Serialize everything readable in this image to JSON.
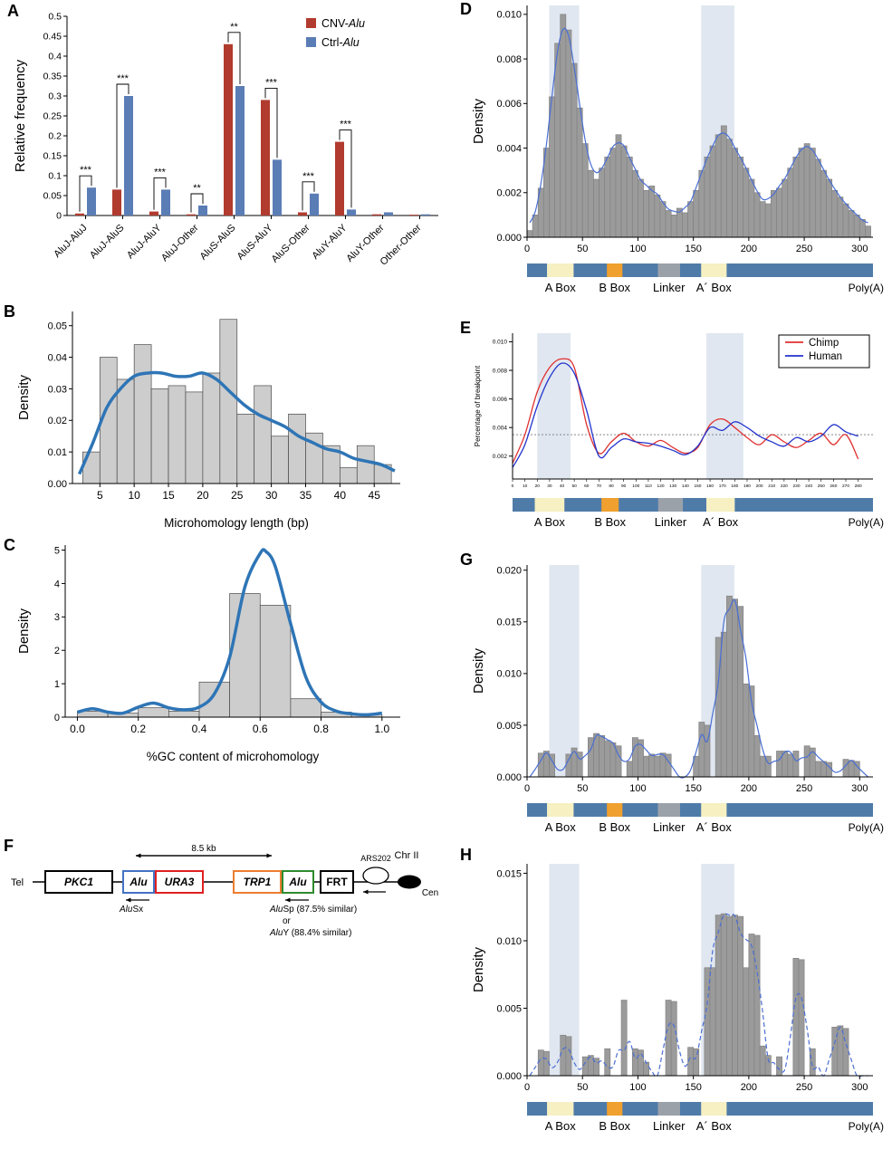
{
  "panel_labels": {
    "A": "A",
    "B": "B",
    "C": "C",
    "D": "D",
    "E": "E",
    "F": "F",
    "G": "G",
    "H": "H"
  },
  "gene_bar": {
    "base_color": "#4f7ba9",
    "right_label": "Poly(A)",
    "segments": [
      {
        "name": "A Box",
        "color": "#f6f0c2",
        "from": 18,
        "to": 42
      },
      {
        "name": "B Box",
        "color": "#efa02e",
        "from": 72,
        "to": 86
      },
      {
        "name": "Linker",
        "color": "#9aa1a9",
        "from": 118,
        "to": 138
      },
      {
        "name": "A´ Box",
        "color": "#f6f0c2",
        "from": 157,
        "to": 180
      }
    ]
  },
  "construct_diagram": {
    "tel": "Tel",
    "chr": "Chr II",
    "cen": "Cen",
    "ars": "ARS202",
    "scale": "8.5 kb",
    "boxes": [
      {
        "name": "PKC1",
        "color": "#000000",
        "italic": true
      },
      {
        "name": "Alu",
        "color": "#4472c4",
        "italic": true
      },
      {
        "name": "URA3",
        "color": "#e02020",
        "italic": true
      },
      {
        "name": "TRP1",
        "color": "#ed7d31",
        "italic": true
      },
      {
        "name": "Alu",
        "color": "#2e8b2e",
        "italic": true
      },
      {
        "name": "FRT",
        "color": "#000000",
        "italic": false
      }
    ],
    "alu1_note": {
      "it": "Alu",
      "rest": "Sx"
    },
    "alu2_notes": [
      {
        "it": "Alu",
        "rest": "Sp (87.5% similar)"
      },
      {
        "plain": "or"
      },
      {
        "it": "Alu",
        "rest": "Y  (88.4% similar)"
      }
    ]
  },
  "chart_data": [
    {
      "panel": "A",
      "type": "bar",
      "ylabel": "Relative frequency",
      "ylim": [
        0,
        0.5
      ],
      "categories": [
        "AluJ-AluJ",
        "AluJ-AluS",
        "AluJ-AluY",
        "AluJ-Other",
        "AluS-AluS",
        "AluS-AluY",
        "AluS-Other",
        "AluY-AluY",
        "AluY-Other",
        "Other-Other"
      ],
      "series": [
        {
          "name": "CNV-Alu",
          "legend_prefix": "CNV-",
          "legend_italic": "Alu",
          "color": "#b13b2e",
          "values": [
            0.005,
            0.065,
            0.01,
            0.003,
            0.43,
            0.29,
            0.008,
            0.185,
            0.003,
            0.002
          ]
        },
        {
          "name": "Ctrl-Alu",
          "legend_prefix": "Ctrl-",
          "legend_italic": "Alu",
          "color": "#5b7db6",
          "values": [
            0.07,
            0.3,
            0.065,
            0.025,
            0.325,
            0.14,
            0.055,
            0.015,
            0.008,
            0.003
          ]
        }
      ],
      "significance": [
        "***",
        "***",
        "***",
        "**",
        "**",
        "***",
        "***",
        "***",
        "",
        ""
      ],
      "ytick_vals": [
        0,
        0.05,
        0.1,
        0.15,
        0.2,
        0.25,
        0.3,
        0.35,
        0.4,
        0.45,
        0.5
      ],
      "ytick_labels": [
        "0",
        "0.05",
        "0.1",
        "0.15",
        "0.2",
        "0.25",
        "0.3",
        "0.35",
        "0.4",
        "0.45",
        "0.5"
      ]
    },
    {
      "panel": "B",
      "type": "bar",
      "subtype": "histogram",
      "xlabel": "Microhomology length (bp)",
      "ylabel": "Density",
      "bin_start": 2.5,
      "bin_width": 2.5,
      "values": [
        0.01,
        0.04,
        0.033,
        0.044,
        0.03,
        0.031,
        0.029,
        0.035,
        0.052,
        0.022,
        0.031,
        0.015,
        0.022,
        0.016,
        0.012,
        0.005,
        0.012,
        0.006
      ],
      "curve_points": [
        [
          2,
          0.003
        ],
        [
          4,
          0.013
        ],
        [
          6,
          0.024
        ],
        [
          8,
          0.03
        ],
        [
          10,
          0.034
        ],
        [
          12,
          0.035
        ],
        [
          14,
          0.035
        ],
        [
          16,
          0.034
        ],
        [
          18,
          0.034
        ],
        [
          20,
          0.035
        ],
        [
          22,
          0.033
        ],
        [
          24,
          0.029
        ],
        [
          26,
          0.025
        ],
        [
          28,
          0.022
        ],
        [
          30,
          0.02
        ],
        [
          32,
          0.018
        ],
        [
          34,
          0.015
        ],
        [
          36,
          0.013
        ],
        [
          38,
          0.011
        ],
        [
          40,
          0.01
        ],
        [
          42,
          0.008
        ],
        [
          44,
          0.007
        ],
        [
          46,
          0.006
        ],
        [
          48,
          0.004
        ]
      ],
      "xlim": [
        1,
        48.8
      ],
      "ylim": [
        0,
        0.0545
      ],
      "xticks": [
        5,
        10,
        15,
        20,
        25,
        30,
        35,
        40,
        45
      ],
      "ytick_vals": [
        0,
        0.01,
        0.02,
        0.03,
        0.04,
        0.05
      ],
      "ytick_labels": [
        "0.00",
        "0.01",
        "0.02",
        "0.03",
        "0.04",
        "0.05"
      ]
    },
    {
      "panel": "C",
      "type": "bar",
      "subtype": "histogram",
      "xlabel": "%GC content of microhomology",
      "ylabel": "Density",
      "bin_start": 0,
      "bin_width": 0.1,
      "values": [
        0.18,
        0.12,
        0.28,
        0.18,
        1.05,
        3.7,
        3.35,
        0.55,
        0.15,
        0.08
      ],
      "curve_points": [
        [
          0,
          0.15
        ],
        [
          0.05,
          0.25
        ],
        [
          0.1,
          0.15
        ],
        [
          0.15,
          0.12
        ],
        [
          0.2,
          0.3
        ],
        [
          0.25,
          0.42
        ],
        [
          0.3,
          0.28
        ],
        [
          0.35,
          0.22
        ],
        [
          0.4,
          0.3
        ],
        [
          0.45,
          0.7
        ],
        [
          0.5,
          1.8
        ],
        [
          0.55,
          3.9
        ],
        [
          0.6,
          4.9
        ],
        [
          0.62,
          4.95
        ],
        [
          0.65,
          4.5
        ],
        [
          0.7,
          2.8
        ],
        [
          0.75,
          1.2
        ],
        [
          0.8,
          0.45
        ],
        [
          0.85,
          0.18
        ],
        [
          0.9,
          0.1
        ],
        [
          0.95,
          0.07
        ],
        [
          1.0,
          0.12
        ]
      ],
      "xlim": [
        -0.04,
        1.06
      ],
      "ylim": [
        0,
        5.15
      ],
      "xticks": [
        0,
        0.2,
        0.4,
        0.6,
        0.8,
        1
      ],
      "xtick_labels": [
        "0.0",
        "0.2",
        "0.4",
        "0.6",
        "0.8",
        "1.0"
      ],
      "ytick_vals": [
        0,
        1,
        2,
        3,
        4,
        5
      ],
      "ytick_labels": [
        "0",
        "1",
        "2",
        "3",
        "4",
        "5"
      ]
    },
    {
      "panel": "D",
      "type": "bar",
      "subtype": "histogram",
      "ylabel": "Density",
      "bin_start": 0,
      "bin_width": 5,
      "values": [
        0.0003,
        0.001,
        0.0022,
        0.004,
        0.0063,
        0.0087,
        0.01,
        0.0093,
        0.0078,
        0.0058,
        0.0042,
        0.003,
        0.0026,
        0.0031,
        0.0036,
        0.004,
        0.0046,
        0.0041,
        0.0036,
        0.003,
        0.0026,
        0.0021,
        0.0023,
        0.0019,
        0.0016,
        0.0012,
        0.001,
        0.0013,
        0.0011,
        0.0016,
        0.0021,
        0.003,
        0.0036,
        0.0041,
        0.0046,
        0.005,
        0.0044,
        0.004,
        0.0036,
        0.0031,
        0.0026,
        0.002,
        0.0016,
        0.0015,
        0.0021,
        0.0022,
        0.0026,
        0.0031,
        0.0036,
        0.004,
        0.0042,
        0.004,
        0.0035,
        0.003,
        0.0026,
        0.0021,
        0.0018,
        0.0015,
        0.0012,
        0.001,
        0.0008,
        0.0005
      ],
      "curve": "auto",
      "xlim": [
        0,
        312
      ],
      "ylim": [
        0,
        0.0104
      ],
      "xticks": [
        0,
        50,
        100,
        150,
        200,
        250,
        300
      ],
      "ytick_vals": [
        0,
        0.002,
        0.004,
        0.006,
        0.008,
        0.01
      ],
      "ytick_labels": [
        "0.000",
        "0.002",
        "0.004",
        "0.006",
        "0.008",
        "0.010"
      ],
      "shaded_bands": [
        [
          20,
          47
        ],
        [
          157,
          187
        ]
      ],
      "gene_bar": true
    },
    {
      "panel": "E",
      "type": "line",
      "ylabel": "Percentage of breakpoint",
      "x_start": 0,
      "x_step": 10,
      "series": [
        {
          "name": "Chimp",
          "color": "#e03030",
          "values": [
            0.0015,
            0.0035,
            0.0065,
            0.0082,
            0.0088,
            0.0082,
            0.0042,
            0.0022,
            0.003,
            0.0036,
            0.003,
            0.0027,
            0.0031,
            0.0026,
            0.0022,
            0.0026,
            0.0042,
            0.0046,
            0.004,
            0.0033,
            0.0028,
            0.0035,
            0.003,
            0.0026,
            0.0031,
            0.0036,
            0.0028,
            0.0035,
            0.0018
          ]
        },
        {
          "name": "Human",
          "color": "#2233cc",
          "values": [
            0.0012,
            0.0028,
            0.0055,
            0.0075,
            0.0085,
            0.0078,
            0.0052,
            0.002,
            0.0026,
            0.0032,
            0.003,
            0.0029,
            0.0027,
            0.0024,
            0.0021,
            0.0027,
            0.004,
            0.0038,
            0.0044,
            0.004,
            0.0034,
            0.003,
            0.0027,
            0.0033,
            0.003,
            0.0034,
            0.0042,
            0.0037,
            0.0034
          ]
        }
      ],
      "xlim": [
        0,
        292
      ],
      "ylim": [
        0.0004,
        0.0106
      ],
      "ytick_vals": [
        0.002,
        0.004,
        0.006,
        0.008,
        0.01
      ],
      "ytick_labels": [
        "0.002",
        "0.004",
        "0.006",
        "0.008",
        "0.010"
      ],
      "xtick_step": 10,
      "xtick_max": 280,
      "dotted_line": 0.0035,
      "shaded_bands": [
        [
          20,
          47
        ],
        [
          157,
          187
        ]
      ],
      "gene_bar": true
    },
    {
      "panel": "G",
      "type": "bar",
      "subtype": "histogram",
      "ylabel": "Density",
      "bin_start": 0,
      "bin_width": 5,
      "values": [
        0,
        0,
        0.0023,
        0.0025,
        0.0022,
        0,
        0,
        0.0022,
        0.0028,
        0.0024,
        0,
        0.0038,
        0.0042,
        0.004,
        0.0035,
        0.0033,
        0.003,
        0,
        0.0015,
        0.0038,
        0.0036,
        0.002,
        0.0022,
        0.002,
        0.0023,
        0.0022,
        0,
        0,
        0,
        0,
        0.002,
        0.0053,
        0.005,
        0,
        0.0135,
        0.014,
        0.0175,
        0.0172,
        0.0165,
        0.009,
        0.0088,
        0.004,
        0.002,
        0.002,
        0,
        0.0025,
        0.0025,
        0.0022,
        0.0025,
        0,
        0.003,
        0.0028,
        0.0015,
        0.0015,
        0.0014,
        0,
        0,
        0.0017,
        0.0016,
        0.0015,
        0,
        0
      ],
      "curve": "auto",
      "xlim": [
        0,
        312
      ],
      "ylim": [
        0,
        0.0205
      ],
      "xticks": [
        0,
        50,
        100,
        150,
        200,
        250,
        300
      ],
      "ytick_vals": [
        0,
        0.005,
        0.01,
        0.015,
        0.02
      ],
      "ytick_labels": [
        "0.000",
        "0.005",
        "0.010",
        "0.015",
        "0.020"
      ],
      "shaded_bands": [
        [
          20,
          47
        ],
        [
          157,
          187
        ]
      ],
      "gene_bar": true
    },
    {
      "panel": "H",
      "type": "bar",
      "subtype": "histogram",
      "ylabel": "Density",
      "bin_start": 0,
      "bin_width": 5,
      "dashed": true,
      "values": [
        0,
        0,
        0.0019,
        0.0018,
        0,
        0,
        0.003,
        0.0029,
        0,
        0,
        0.0014,
        0.0015,
        0.0013,
        0,
        0.002,
        0,
        0,
        0.0056,
        0,
        0.002,
        0.0019,
        0.001,
        0,
        0,
        0,
        0.0056,
        0.0055,
        0,
        0,
        0.0021,
        0.002,
        0,
        0.008,
        0.008,
        0.0119,
        0.012,
        0.0118,
        0.0119,
        0.0118,
        0.008,
        0.0105,
        0.0104,
        0.0022,
        0.0015,
        0,
        0.0014,
        0,
        0,
        0.0087,
        0.0086,
        0,
        0.002,
        0,
        0,
        0,
        0.0036,
        0.0037,
        0.0035,
        0,
        0,
        0,
        0
      ],
      "curve": "auto",
      "xlim": [
        0,
        312
      ],
      "ylim": [
        0,
        0.0157
      ],
      "xticks": [
        0,
        50,
        100,
        150,
        200,
        250,
        300
      ],
      "ytick_vals": [
        0,
        0.005,
        0.01,
        0.015
      ],
      "ytick_labels": [
        "0.000",
        "0.005",
        "0.010",
        "0.015"
      ],
      "shaded_bands": [
        [
          20,
          47
        ],
        [
          157,
          187
        ]
      ],
      "gene_bar": true
    }
  ]
}
